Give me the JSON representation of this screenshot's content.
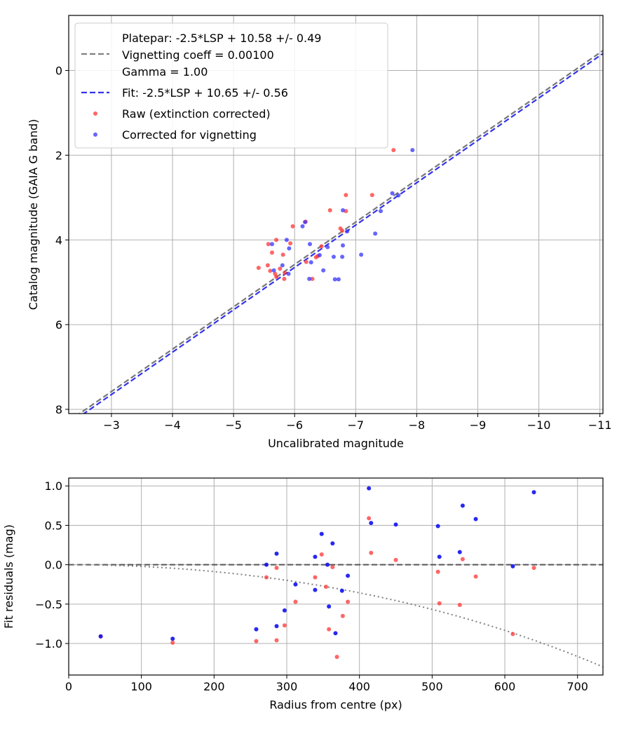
{
  "chart_data": [
    {
      "type": "scatter",
      "xlabel": "Uncalibrated magnitude",
      "ylabel": "Catalog magnitude (GAIA G band)",
      "xlim": [
        -2.3,
        -11.05
      ],
      "ylim": [
        8.1,
        -1.3
      ],
      "x_ticks": [
        -3,
        -4,
        -5,
        -6,
        -7,
        -8,
        -9,
        -10,
        -11
      ],
      "x_tick_labels": [
        "−3",
        "−4",
        "−5",
        "−6",
        "−7",
        "−8",
        "−9",
        "−10",
        "−11"
      ],
      "y_ticks": [
        0,
        2,
        4,
        6,
        8
      ],
      "y_tick_labels": [
        "0",
        "2",
        "4",
        "6",
        "8"
      ],
      "grid": true,
      "legend_position": "top-left",
      "legend": [
        {
          "label": "Platepar: -2.5*LSP + 10.58 +/- 0.49\nVignetting coeff = 0.00100\nGamma = 1.00",
          "style": "dashed",
          "color": "#808080"
        },
        {
          "label": "Fit: -2.5*LSP + 10.65 +/- 0.56",
          "style": "dashed",
          "color": "#3333ee"
        },
        {
          "label": "Raw (extinction corrected)",
          "style": "dot",
          "color": "#ff3333"
        },
        {
          "label": "Corrected for vignetting",
          "style": "dot",
          "color": "#3333ff"
        }
      ],
      "lines": [
        {
          "name": "Platepar",
          "slope": 1.0,
          "intercept": 10.58,
          "color": "#777777"
        },
        {
          "name": "Fit",
          "slope": 1.0,
          "intercept": 10.65,
          "color": "#3333ee"
        }
      ],
      "series": [
        {
          "name": "Raw (extinction corrected)",
          "color": "#ff3333",
          "points": [
            [
              -7.62,
              1.88
            ],
            [
              -6.84,
              2.94
            ],
            [
              -7.27,
              2.94
            ],
            [
              -6.58,
              3.3
            ],
            [
              -6.84,
              3.32
            ],
            [
              -6.18,
              3.57
            ],
            [
              -5.97,
              3.68
            ],
            [
              -6.75,
              3.73
            ],
            [
              -6.78,
              3.78
            ],
            [
              -5.7,
              4.0
            ],
            [
              -5.57,
              4.1
            ],
            [
              -5.93,
              4.08
            ],
            [
              -6.44,
              4.15
            ],
            [
              -5.63,
              4.3
            ],
            [
              -5.81,
              4.35
            ],
            [
              -6.38,
              4.38
            ],
            [
              -6.35,
              4.41
            ],
            [
              -5.56,
              4.6
            ],
            [
              -5.41,
              4.66
            ],
            [
              -5.76,
              4.68
            ],
            [
              -5.84,
              4.78
            ],
            [
              -5.6,
              4.73
            ],
            [
              -5.68,
              4.8
            ],
            [
              -5.7,
              4.87
            ],
            [
              -5.83,
              4.92
            ],
            [
              -6.19,
              4.52
            ],
            [
              -6.29,
              4.92
            ]
          ]
        },
        {
          "name": "Corrected for vignetting",
          "color": "#3333ff",
          "points": [
            [
              -7.93,
              1.88
            ],
            [
              -7.7,
              2.95
            ],
            [
              -7.6,
              2.9
            ],
            [
              -7.41,
              3.32
            ],
            [
              -6.79,
              3.3
            ],
            [
              -6.17,
              3.58
            ],
            [
              -6.13,
              3.68
            ],
            [
              -6.86,
              3.8
            ],
            [
              -7.32,
              3.85
            ],
            [
              -5.87,
              4.0
            ],
            [
              -5.63,
              4.1
            ],
            [
              -6.25,
              4.1
            ],
            [
              -6.79,
              4.13
            ],
            [
              -5.91,
              4.2
            ],
            [
              -6.54,
              4.17
            ],
            [
              -6.41,
              4.36
            ],
            [
              -7.09,
              4.35
            ],
            [
              -6.64,
              4.4
            ],
            [
              -6.78,
              4.4
            ],
            [
              -6.27,
              4.53
            ],
            [
              -5.8,
              4.6
            ],
            [
              -5.66,
              4.72
            ],
            [
              -6.47,
              4.72
            ],
            [
              -5.9,
              4.8
            ],
            [
              -6.24,
              4.92
            ],
            [
              -6.66,
              4.93
            ],
            [
              -6.72,
              4.93
            ]
          ]
        }
      ]
    },
    {
      "type": "scatter",
      "xlabel": "Radius from centre (px)",
      "ylabel": "Fit residuals (mag)",
      "xlim": [
        0,
        735
      ],
      "ylim": [
        -1.4,
        1.1
      ],
      "x_ticks": [
        0,
        100,
        200,
        300,
        400,
        500,
        600,
        700
      ],
      "x_tick_labels": [
        "0",
        "100",
        "200",
        "300",
        "400",
        "500",
        "600",
        "700"
      ],
      "y_ticks": [
        1.0,
        0.5,
        0.0,
        -0.5,
        -1.0
      ],
      "y_tick_labels": [
        "1.0",
        "0.5",
        "0.0",
        "−0.5",
        "−1.0"
      ],
      "grid": true,
      "reference_line": {
        "y": 0.0,
        "style": "dashed",
        "color": "#555555"
      },
      "vignetting_curve": {
        "coefficient": 0.001,
        "style": "dotted",
        "color": "#808080"
      },
      "series": [
        {
          "name": "Raw (extinction corrected)",
          "color": "#ff3333",
          "points": [
            [
              44,
              -0.91
            ],
            [
              143,
              -0.99
            ],
            [
              258,
              -0.97
            ],
            [
              272,
              -0.16
            ],
            [
              286,
              -0.96
            ],
            [
              286,
              -0.04
            ],
            [
              297,
              -0.77
            ],
            [
              312,
              -0.47
            ],
            [
              339,
              -0.16
            ],
            [
              348,
              0.13
            ],
            [
              354,
              -0.28
            ],
            [
              358,
              -0.82
            ],
            [
              363,
              -0.03
            ],
            [
              369,
              -1.17
            ],
            [
              377,
              -0.65
            ],
            [
              384,
              -0.47
            ],
            [
              413,
              0.59
            ],
            [
              416,
              0.15
            ],
            [
              450,
              0.06
            ],
            [
              508,
              -0.09
            ],
            [
              510,
              -0.49
            ],
            [
              538,
              -0.51
            ],
            [
              542,
              0.07
            ],
            [
              560,
              -0.15
            ],
            [
              611,
              -0.88
            ],
            [
              640,
              -0.04
            ]
          ]
        },
        {
          "name": "Corrected for vignetting",
          "color": "#1111ee",
          "points": [
            [
              44,
              -0.91
            ],
            [
              143,
              -0.94
            ],
            [
              258,
              -0.82
            ],
            [
              272,
              0.0
            ],
            [
              286,
              -0.78
            ],
            [
              286,
              0.14
            ],
            [
              297,
              -0.58
            ],
            [
              312,
              -0.25
            ],
            [
              339,
              -0.32
            ],
            [
              339,
              0.1
            ],
            [
              348,
              0.39
            ],
            [
              356,
              0.0
            ],
            [
              358,
              -0.53
            ],
            [
              363,
              0.27
            ],
            [
              367,
              -0.87
            ],
            [
              376,
              -0.33
            ],
            [
              384,
              -0.14
            ],
            [
              413,
              0.97
            ],
            [
              416,
              0.53
            ],
            [
              450,
              0.51
            ],
            [
              508,
              0.49
            ],
            [
              510,
              0.1
            ],
            [
              538,
              0.16
            ],
            [
              542,
              0.75
            ],
            [
              560,
              0.58
            ],
            [
              611,
              -0.02
            ],
            [
              640,
              0.92
            ]
          ]
        }
      ]
    }
  ]
}
